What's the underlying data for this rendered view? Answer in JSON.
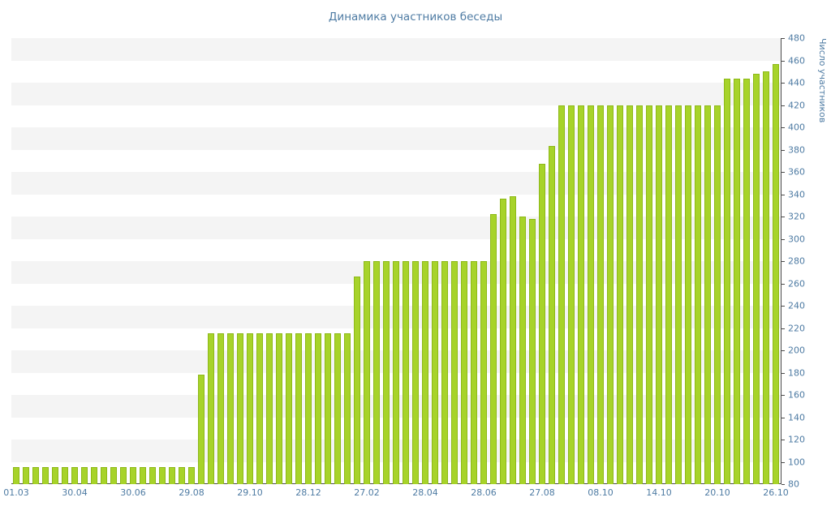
{
  "title": "Динамика участников беседы",
  "chart_data": {
    "type": "bar",
    "title": "Динамика участников беседы",
    "xlabel": "",
    "ylabel": "Число участников",
    "ylim": [
      80,
      480
    ],
    "ytick_step": 20,
    "grid": "alternating-horizontal-bands",
    "legend": false,
    "x_label_every": 6,
    "x_labels": [
      "01.03",
      "30.04",
      "30.06",
      "29.08",
      "29.10",
      "28.12",
      "27.02",
      "28.04",
      "28.06",
      "27.08",
      "08.10",
      "14.10",
      "20.10",
      "26.10"
    ],
    "values": [
      95,
      95,
      95,
      95,
      95,
      95,
      95,
      95,
      95,
      95,
      95,
      95,
      95,
      95,
      95,
      95,
      95,
      95,
      95,
      178,
      215,
      215,
      215,
      215,
      215,
      215,
      215,
      215,
      215,
      215,
      215,
      215,
      215,
      215,
      215,
      266,
      280,
      280,
      280,
      280,
      280,
      280,
      280,
      280,
      280,
      280,
      280,
      280,
      280,
      322,
      336,
      338,
      320,
      318,
      367,
      383,
      420,
      420,
      420,
      420,
      420,
      420,
      420,
      420,
      420,
      420,
      420,
      420,
      420,
      420,
      420,
      420,
      420,
      444,
      444,
      444,
      448,
      450,
      457
    ],
    "colors": {
      "bar_fill": "#a7d32a",
      "bar_border": "#8db918",
      "stripe": "#f4f4f4",
      "axis": "#4a4a4a",
      "label": "#4e7ba3",
      "background": "#ffffff"
    }
  }
}
